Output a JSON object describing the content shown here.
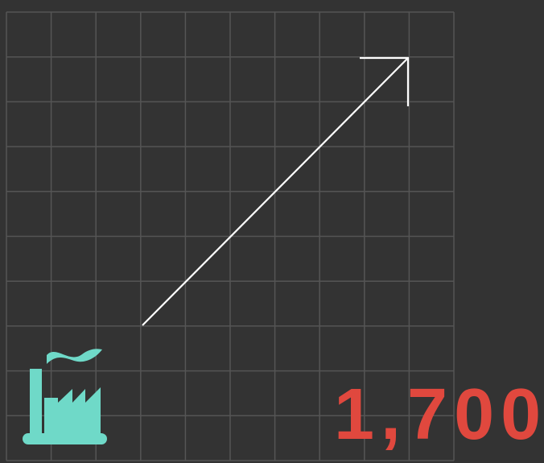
{
  "stat": {
    "value": "1,700"
  }
}
